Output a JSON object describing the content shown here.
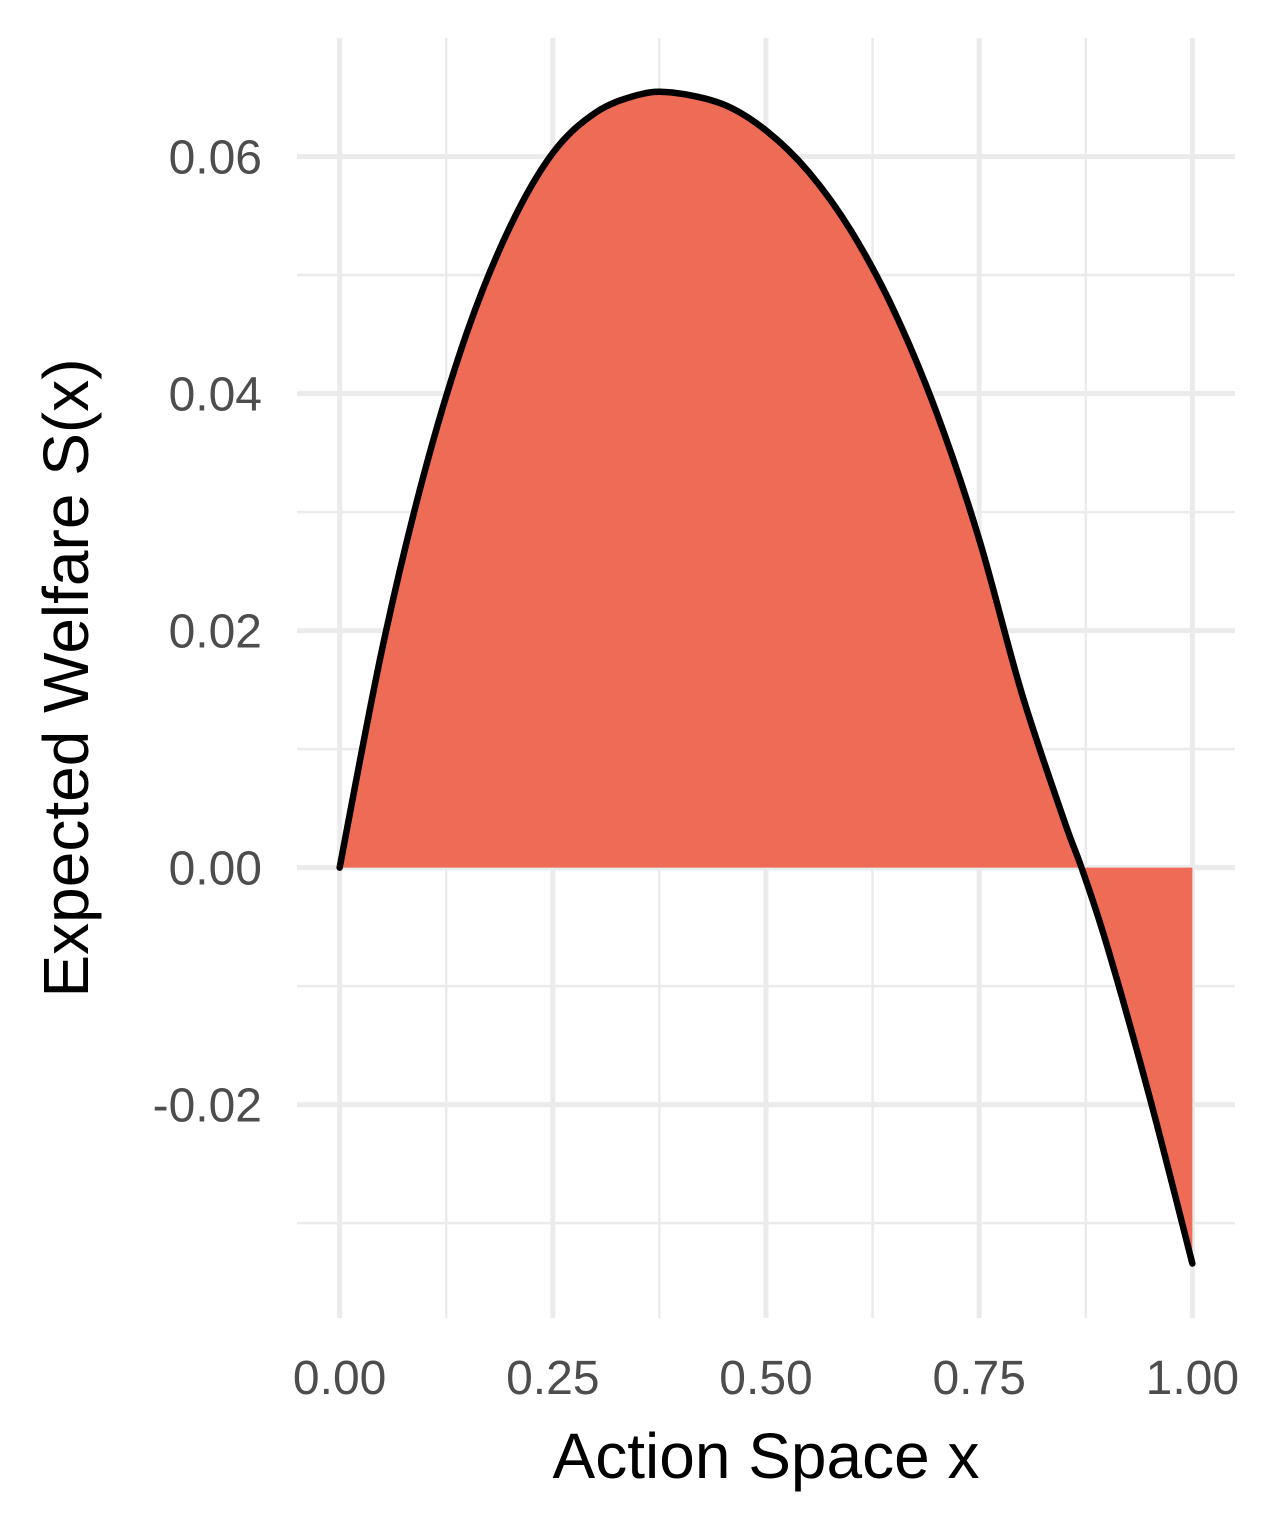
{
  "chart_data": {
    "type": "area",
    "title": "",
    "xlabel": "Action Space x",
    "ylabel": "Expected Welfare S(x)",
    "xlim": [
      -0.05,
      1.05
    ],
    "ylim": [
      -0.038,
      0.07
    ],
    "x_ticks": [
      0.0,
      0.25,
      0.5,
      0.75,
      1.0
    ],
    "x_tick_labels": [
      "0.00",
      "0.25",
      "0.50",
      "0.75",
      "1.00"
    ],
    "y_ticks": [
      -0.02,
      0.0,
      0.02,
      0.04,
      0.06
    ],
    "y_tick_labels": [
      "-0.02",
      "0.00",
      "0.02",
      "0.04",
      "0.06"
    ],
    "x_minor_ticks": [
      0.125,
      0.375,
      0.625,
      0.875
    ],
    "y_minor_ticks": [
      -0.03,
      -0.01,
      0.01,
      0.03,
      0.05
    ],
    "grid": true,
    "fill_baseline": 0,
    "series": [
      {
        "x": [
          0.0,
          0.05,
          0.1,
          0.15,
          0.2,
          0.25,
          0.3,
          0.35,
          0.39,
          0.45,
          0.5,
          0.55,
          0.6,
          0.65,
          0.7,
          0.75,
          0.8,
          0.85,
          0.87,
          0.9,
          0.95,
          1.0
        ],
        "y": [
          0.0,
          0.0185,
          0.0335,
          0.0453,
          0.0541,
          0.0603,
          0.0637,
          0.0652,
          0.0654,
          0.0644,
          0.0622,
          0.0587,
          0.0537,
          0.047,
          0.0384,
          0.0277,
          0.0147,
          0.0039,
          0.0,
          -0.0066,
          -0.0194,
          -0.0334
        ]
      }
    ],
    "colors": {
      "fill": "#ee6b55",
      "line": "#000000",
      "grid": "#ebebeb",
      "tick_label": "#4d4d4d",
      "axis_title": "#000000"
    }
  }
}
